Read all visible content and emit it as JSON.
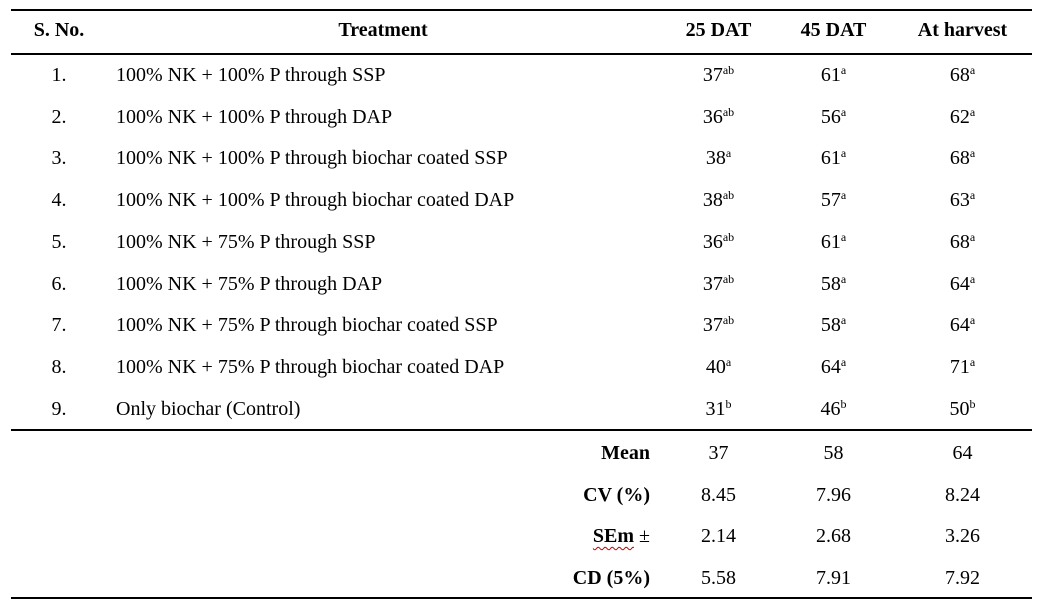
{
  "headers": {
    "sno": "S. No.",
    "treatment": "Treatment",
    "dat25": "25 DAT",
    "dat45": "45 DAT",
    "harvest": "At harvest"
  },
  "rows": [
    {
      "sno": "1.",
      "treatment": "100% NK + 100% P through SSP",
      "dat25": "37",
      "dat25_sup": "ab",
      "dat45": "61",
      "dat45_sup": "a",
      "harvest": "68",
      "harvest_sup": "a"
    },
    {
      "sno": "2.",
      "treatment": "100% NK + 100% P through DAP",
      "dat25": "36",
      "dat25_sup": "ab",
      "dat45": "56",
      "dat45_sup": "a",
      "harvest": "62",
      "harvest_sup": "a"
    },
    {
      "sno": "3.",
      "treatment": "100% NK + 100% P through biochar coated SSP",
      "dat25": "38",
      "dat25_sup": "a",
      "dat45": "61",
      "dat45_sup": "a",
      "harvest": "68",
      "harvest_sup": "a"
    },
    {
      "sno": "4.",
      "treatment": "100% NK + 100% P through biochar coated DAP",
      "dat25": "38",
      "dat25_sup": "ab",
      "dat45": "57",
      "dat45_sup": "a",
      "harvest": "63",
      "harvest_sup": "a"
    },
    {
      "sno": "5.",
      "treatment": "100% NK + 75% P through SSP",
      "dat25": "36",
      "dat25_sup": "ab",
      "dat45": "61",
      "dat45_sup": "a",
      "harvest": "68",
      "harvest_sup": "a"
    },
    {
      "sno": "6.",
      "treatment": "100% NK + 75% P through DAP",
      "dat25": "37",
      "dat25_sup": "ab",
      "dat45": "58",
      "dat45_sup": "a",
      "harvest": "64",
      "harvest_sup": "a"
    },
    {
      "sno": "7.",
      "treatment": "100% NK + 75% P through biochar coated SSP",
      "dat25": "37",
      "dat25_sup": "ab",
      "dat45": "58",
      "dat45_sup": "a",
      "harvest": "64",
      "harvest_sup": "a"
    },
    {
      "sno": "8.",
      "treatment": "100% NK + 75% P through biochar coated DAP",
      "dat25": "40",
      "dat25_sup": "a",
      "dat45": "64",
      "dat45_sup": "a",
      "harvest": "71",
      "harvest_sup": "a"
    },
    {
      "sno": "9.",
      "treatment": "Only biochar (Control)",
      "dat25": "31",
      "dat25_sup": "b",
      "dat45": "46",
      "dat45_sup": "b",
      "harvest": "50",
      "harvest_sup": "b"
    }
  ],
  "summary": {
    "mean": {
      "label": "Mean",
      "dat25": "37",
      "dat45": "58",
      "harvest": "64"
    },
    "cv": {
      "label": "CV (%)",
      "dat25": "8.45",
      "dat45": "7.96",
      "harvest": "8.24"
    },
    "sem": {
      "label": "SEm",
      "label_suffix": " ±",
      "dat25": "2.14",
      "dat45": "2.68",
      "harvest": "3.26"
    },
    "cd": {
      "label": "CD (5%)",
      "dat25": "5.58",
      "dat45": "7.91",
      "harvest": "7.92"
    }
  }
}
